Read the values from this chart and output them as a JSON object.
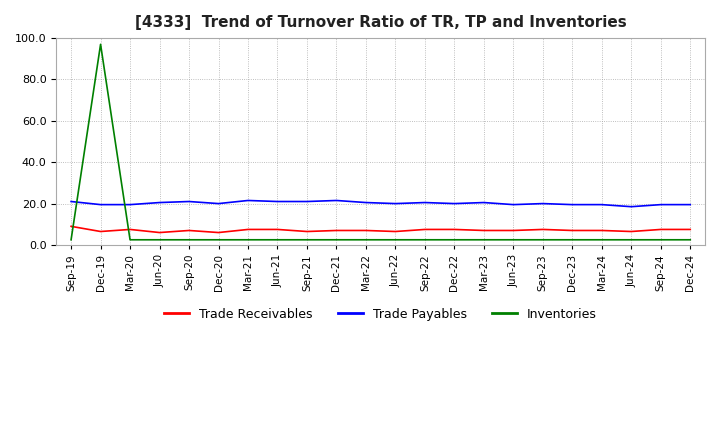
{
  "title": "[4333]  Trend of Turnover Ratio of TR, TP and Inventories",
  "ylim": [
    0,
    100
  ],
  "yticks": [
    0,
    20,
    40,
    60,
    80,
    100
  ],
  "background_color": "#ffffff",
  "grid_color": "#aaaaaa",
  "legend_labels": [
    "Trade Receivables",
    "Trade Payables",
    "Inventories"
  ],
  "legend_colors": [
    "#ff0000",
    "#0000ff",
    "#008000"
  ],
  "x_labels": [
    "Sep-19",
    "Dec-19",
    "Mar-20",
    "Jun-20",
    "Sep-20",
    "Dec-20",
    "Mar-21",
    "Jun-21",
    "Sep-21",
    "Dec-21",
    "Mar-22",
    "Jun-22",
    "Sep-22",
    "Dec-22",
    "Mar-23",
    "Jun-23",
    "Sep-23",
    "Dec-23",
    "Mar-24",
    "Jun-24",
    "Sep-24",
    "Dec-24"
  ],
  "trade_receivables": [
    9.0,
    6.5,
    7.5,
    6.0,
    7.0,
    6.0,
    7.5,
    7.5,
    6.5,
    7.0,
    7.0,
    6.5,
    7.5,
    7.5,
    7.0,
    7.0,
    7.5,
    7.0,
    7.0,
    6.5,
    7.5,
    7.5
  ],
  "trade_payables": [
    21.0,
    19.5,
    19.5,
    20.5,
    21.0,
    20.0,
    21.5,
    21.0,
    21.0,
    21.5,
    20.5,
    20.0,
    20.5,
    20.0,
    20.5,
    19.5,
    20.0,
    19.5,
    19.5,
    18.5,
    19.5,
    19.5
  ],
  "inventories": [
    2.5,
    97.0,
    2.5,
    2.5,
    2.5,
    2.5,
    2.5,
    2.5,
    2.5,
    2.5,
    2.5,
    2.5,
    2.5,
    2.5,
    2.5,
    2.5,
    2.5,
    2.5,
    2.5,
    2.5,
    2.5,
    2.5
  ]
}
